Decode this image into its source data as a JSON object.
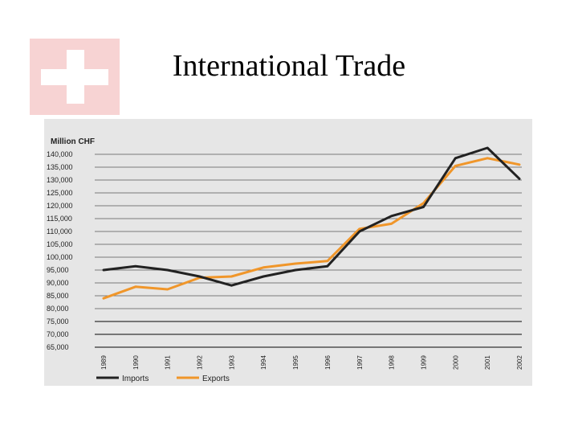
{
  "slide": {
    "title": "International Trade"
  },
  "logo": {
    "icon": "swiss-cross-icon",
    "background": "#f7d3d3",
    "cross_color": "#ffffff"
  },
  "chart_data": {
    "type": "line",
    "title": "",
    "ylabel": "Million CHF",
    "xlabel": "",
    "ylim": [
      65000,
      140000
    ],
    "yticks": [
      140000,
      135000,
      130000,
      125000,
      120000,
      115000,
      110000,
      105000,
      100000,
      95000,
      90000,
      85000,
      80000,
      75000,
      70000,
      65000
    ],
    "ytick_labels": [
      "140,000",
      "135,000",
      "130,000",
      "125,000",
      "120,000",
      "115,000",
      "110,000",
      "105,000",
      "100,000",
      "95,000",
      "90,000",
      "85,000",
      "80,000",
      "75,000",
      "70,000",
      "65,000"
    ],
    "x": [
      "1989",
      "1990",
      "1991",
      "1992",
      "1993",
      "1994",
      "1995",
      "1996",
      "1997",
      "1998",
      "1999",
      "2000",
      "2001",
      "2002"
    ],
    "series": [
      {
        "name": "Imports",
        "color": "#222222",
        "values": [
          95000,
          96500,
          95000,
          92500,
          89000,
          92500,
          95000,
          96500,
          110000,
          116000,
          119500,
          138500,
          142500,
          130500
        ]
      },
      {
        "name": "Exports",
        "color": "#f0962a",
        "values": [
          84000,
          88500,
          87500,
          92000,
          92500,
          96000,
          97500,
          98500,
          111000,
          113000,
          121000,
          135500,
          138500,
          136000
        ]
      }
    ],
    "grid": true,
    "legend_position": "bottom-left"
  }
}
